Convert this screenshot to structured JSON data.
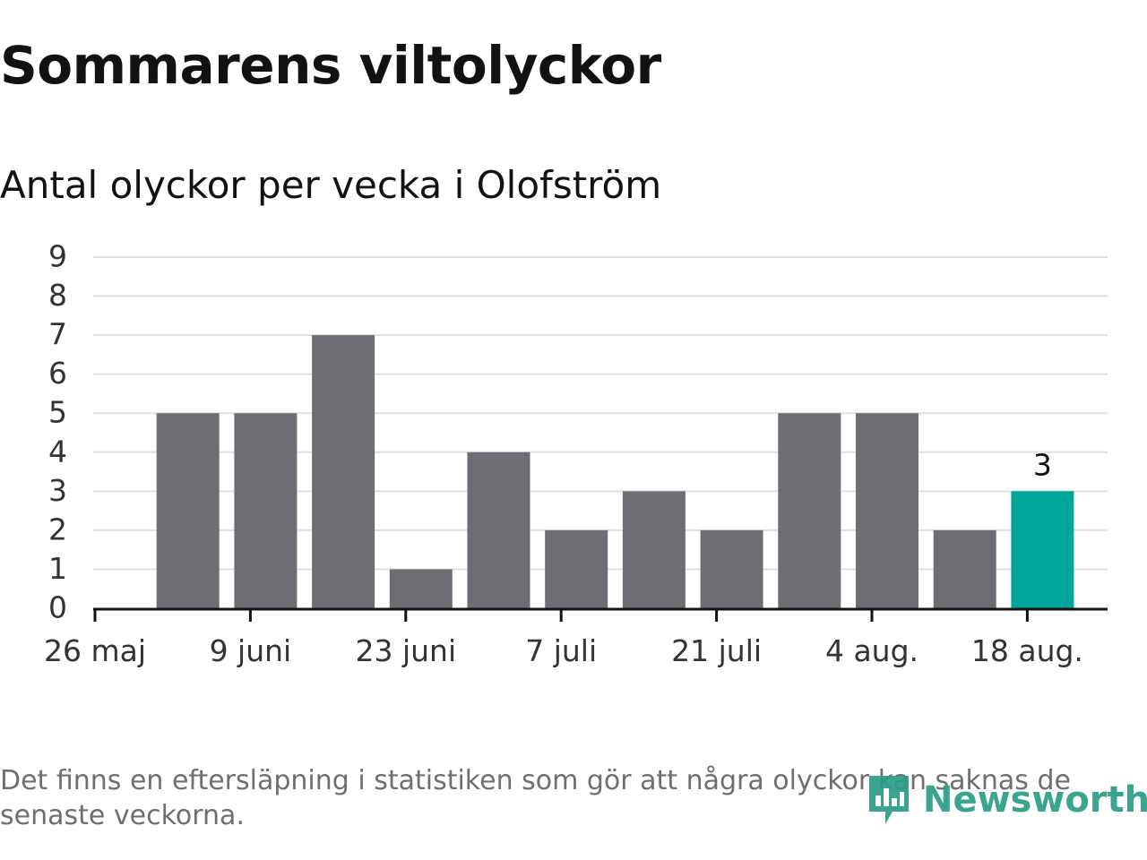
{
  "title": "Sommarens viltolyckor",
  "subtitle": "Antal olyckor per vecka i Olofström",
  "footnote": "Det finns en eftersläpning i statistiken som gör att några olyckor kan saknas de senaste veckorna.",
  "logo": {
    "text": "Newsworthy",
    "icon": "bar-chart-logo-icon"
  },
  "colors": {
    "bar": "#6e6d74",
    "highlight": "#00a699",
    "grid": "#e0e0e0",
    "axis": "#121212",
    "tick_label": "#333333",
    "logo": "#2a9d86",
    "footnote": "#6f6f6f"
  },
  "chart_data": {
    "type": "bar",
    "title": "Sommarens viltolyckor",
    "subtitle": "Antal olyckor per vecka i Olofström",
    "x": [
      "2019-05-26",
      "2019-06-02",
      "2019-06-09",
      "2019-06-16",
      "2019-06-23",
      "2019-06-30",
      "2019-07-07",
      "2019-07-14",
      "2019-07-21",
      "2019-07-28",
      "2019-08-04",
      "2019-08-11",
      "2019-08-18"
    ],
    "values": [
      null,
      5,
      5,
      7,
      1,
      4,
      2,
      3,
      2,
      5,
      5,
      2,
      3
    ],
    "highlight_index": 12,
    "data_labels": [
      {
        "index": 12,
        "text": "3"
      }
    ],
    "xticks": [
      "26 maj",
      "9 juni",
      "23 juni",
      "7 juli",
      "21 juli",
      "4 aug.",
      "18 aug."
    ],
    "yticks": [
      "0",
      "1",
      "2",
      "3",
      "4",
      "5",
      "6",
      "7",
      "8",
      "9"
    ],
    "ylim": [
      0,
      9
    ],
    "grid": true,
    "legend": "none"
  }
}
